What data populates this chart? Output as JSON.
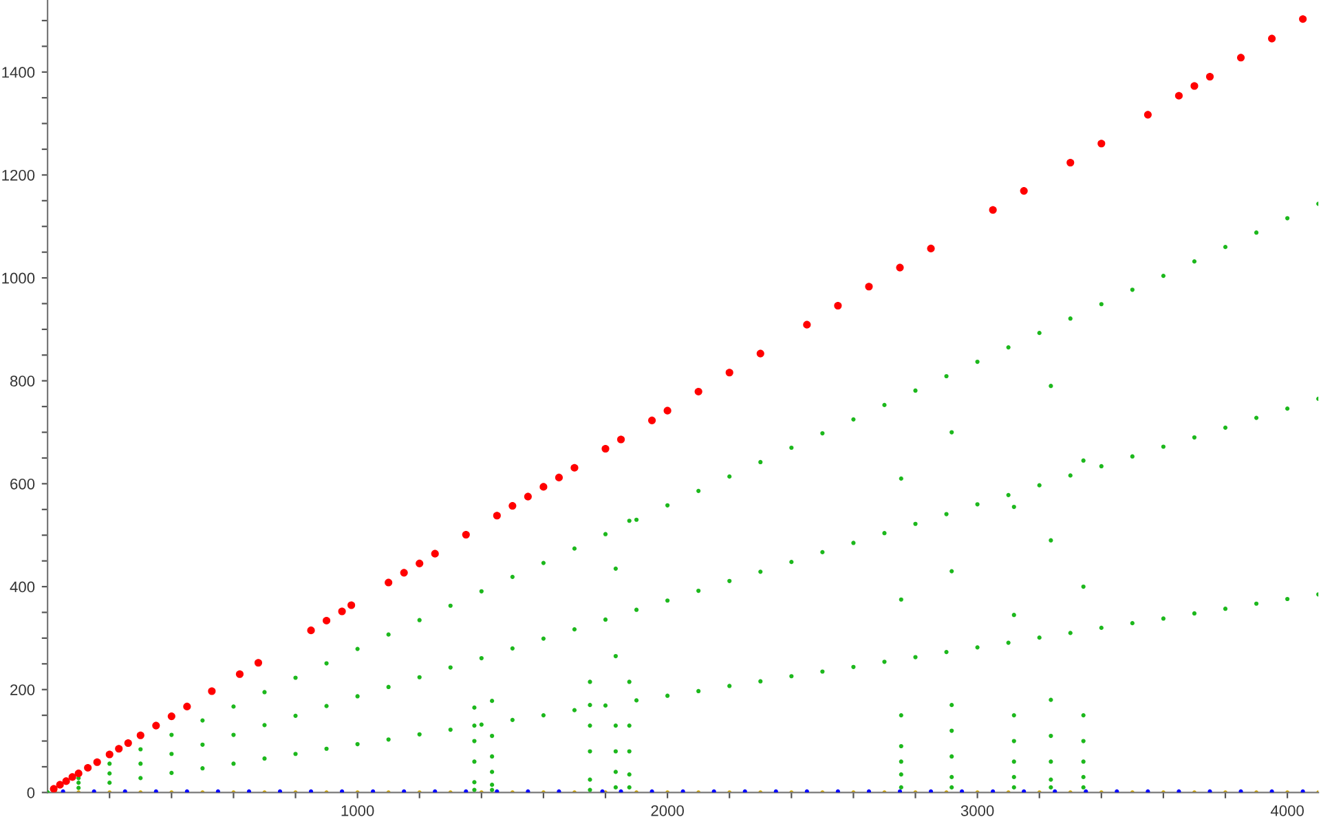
{
  "chart_data": {
    "type": "scatter",
    "marker": "circle",
    "grid": false,
    "xlim": [
      0,
      4100
    ],
    "ylim": [
      0,
      1540
    ],
    "xticks": [
      {
        "value": 200,
        "label": null
      },
      {
        "value": 400,
        "label": null
      },
      {
        "value": 600,
        "label": null
      },
      {
        "value": 800,
        "label": null
      },
      1000,
      {
        "value": 1200,
        "label": null
      },
      {
        "value": 1400,
        "label": null
      },
      {
        "value": 1600,
        "label": null
      },
      {
        "value": 1800,
        "label": null
      },
      2000,
      {
        "value": 2200,
        "label": null
      },
      {
        "value": 2400,
        "label": null
      },
      {
        "value": 2600,
        "label": null
      },
      {
        "value": 2800,
        "label": null
      },
      3000,
      {
        "value": 3200,
        "label": null
      },
      {
        "value": 3400,
        "label": null
      },
      {
        "value": 3600,
        "label": null
      },
      {
        "value": 3800,
        "label": null
      },
      4000
    ],
    "yticks": [
      0,
      {
        "value": 50,
        "label": null
      },
      {
        "value": 100,
        "label": null
      },
      {
        "value": 150,
        "label": null
      },
      200,
      {
        "value": 250,
        "label": null
      },
      {
        "value": 300,
        "label": null
      },
      {
        "value": 350,
        "label": null
      },
      400,
      {
        "value": 450,
        "label": null
      },
      {
        "value": 500,
        "label": null
      },
      {
        "value": 550,
        "label": null
      },
      600,
      {
        "value": 650,
        "label": null
      },
      {
        "value": 700,
        "label": null
      },
      {
        "value": 750,
        "label": null
      },
      800,
      {
        "value": 850,
        "label": null
      },
      {
        "value": 900,
        "label": null
      },
      {
        "value": 950,
        "label": null
      },
      1000,
      {
        "value": 1050,
        "label": null
      },
      {
        "value": 1100,
        "label": null
      },
      {
        "value": 1150,
        "label": null
      },
      1200,
      {
        "value": 1250,
        "label": null
      },
      {
        "value": 1300,
        "label": null
      },
      {
        "value": 1350,
        "label": null
      },
      1400,
      {
        "value": 1450,
        "label": null
      },
      {
        "value": 1500,
        "label": null
      }
    ],
    "series": [
      {
        "color": "#d4a800",
        "x": [
          25,
          100,
          200,
          300,
          400,
          500,
          600,
          700,
          800,
          900,
          1000,
          1100,
          1200,
          1300,
          1400,
          1500,
          1600,
          1700,
          1800,
          1900,
          2000,
          2100,
          2200,
          2300,
          2400,
          2500,
          2600,
          2700,
          2800,
          2900,
          3000,
          3100,
          3200,
          3300,
          3400,
          3500,
          3600,
          3700,
          3800,
          3900,
          4000,
          4100
        ],
        "values": [
          0,
          0,
          0,
          0,
          0,
          0,
          0,
          0,
          0,
          0,
          0,
          0,
          0,
          0,
          0,
          0,
          0,
          0,
          0,
          0,
          0,
          0,
          0,
          0,
          0,
          0,
          0,
          0,
          0,
          0,
          0,
          0,
          0,
          0,
          0,
          0,
          0,
          0,
          0,
          0,
          0,
          0
        ]
      },
      {
        "color": "#0000ff",
        "x": [
          50,
          150,
          250,
          350,
          450,
          550,
          650,
          750,
          850,
          950,
          1050,
          1150,
          1250,
          1350,
          1450,
          1550,
          1650,
          1790,
          1850,
          1950,
          2050,
          2150,
          2250,
          2350,
          2450,
          2550,
          2650,
          2750,
          2850,
          2950,
          3050,
          3150,
          3250,
          3350,
          3450,
          3550,
          3650,
          3750,
          3850,
          3950,
          4050
        ],
        "values": [
          2,
          2,
          2,
          2,
          2,
          2,
          2,
          2,
          2,
          2,
          2,
          2,
          2,
          2,
          2,
          2,
          2,
          2,
          2,
          2,
          2,
          2,
          2,
          2,
          2,
          2,
          2,
          2,
          2,
          2,
          2,
          2,
          2,
          2,
          2,
          2,
          2,
          2,
          2,
          2,
          2
        ]
      },
      {
        "color": "#1db81d",
        "x": [
          0,
          100,
          200,
          300,
          400,
          500,
          600,
          700,
          800,
          900,
          1000,
          1100,
          1200,
          1300,
          1400,
          1500,
          1600,
          1700,
          1800,
          1900,
          2000,
          2100,
          2200,
          2300,
          2400,
          2500,
          2600,
          2700,
          2800,
          2900,
          3000,
          3100,
          3200,
          3300,
          3400,
          3500,
          3600,
          3700,
          3800,
          3900,
          4000,
          4100
        ],
        "values": [
          0,
          9,
          19,
          28,
          38,
          47,
          56,
          66,
          75,
          85,
          94,
          103,
          113,
          122,
          132,
          141,
          150,
          160,
          169,
          179,
          188,
          197,
          207,
          216,
          226,
          235,
          244,
          254,
          263,
          273,
          282,
          291,
          301,
          310,
          320,
          329,
          338,
          348,
          357,
          367,
          376,
          385
        ]
      },
      {
        "color": "#1db81d",
        "x": [
          0,
          100,
          200,
          300,
          400,
          500,
          600,
          700,
          800,
          900,
          1000,
          1100,
          1200,
          1300,
          1400,
          1500,
          1600,
          1700,
          1800,
          1900,
          2000,
          2100,
          2200,
          2300,
          2400,
          2500,
          2600,
          2700,
          2800,
          2900,
          3000,
          3100,
          3200,
          3300,
          3400,
          3500,
          3600,
          3700,
          3800,
          3900,
          4000,
          4100
        ],
        "values": [
          0,
          19,
          37,
          56,
          75,
          93,
          112,
          131,
          149,
          168,
          187,
          205,
          224,
          243,
          261,
          280,
          299,
          317,
          336,
          355,
          373,
          392,
          411,
          429,
          448,
          467,
          485,
          504,
          522,
          541,
          560,
          578,
          597,
          616,
          634,
          653,
          672,
          690,
          709,
          728,
          746,
          765
        ]
      },
      {
        "color": "#1db81d",
        "x": [
          0,
          100,
          200,
          300,
          400,
          500,
          600,
          700,
          800,
          900,
          1000,
          1100,
          1200,
          1300,
          1400,
          1500,
          1600,
          1700,
          1800,
          1900,
          2000,
          2100,
          2200,
          2300,
          2400,
          2500,
          2600,
          2700,
          2800,
          2900,
          3000,
          3100,
          3200,
          3300,
          3400,
          3500,
          3600,
          3700,
          3800,
          3900,
          4000,
          4100
        ],
        "values": [
          0,
          28,
          56,
          84,
          112,
          140,
          167,
          195,
          223,
          251,
          279,
          307,
          335,
          363,
          391,
          419,
          446,
          474,
          502,
          530,
          558,
          586,
          614,
          642,
          670,
          698,
          725,
          753,
          781,
          809,
          837,
          865,
          893,
          921,
          949,
          977,
          1004,
          1032,
          1060,
          1088,
          1116,
          1144
        ]
      },
      {
        "color": "#1db81d",
        "x": [
          1377,
          1377,
          1377,
          1377,
          1377,
          1377,
          1434,
          1434,
          1434,
          1434,
          1434,
          1434,
          1750,
          1750,
          1750,
          1750,
          1750,
          1750,
          1833,
          1833,
          1833,
          1833,
          1833,
          1833,
          1877,
          1877,
          1877,
          1877,
          1877,
          1877,
          2754,
          2754,
          2754,
          2754,
          2754,
          2754,
          2754,
          2917,
          2917,
          2917,
          2917,
          2917,
          2917,
          2917,
          3118,
          3118,
          3118,
          3118,
          3118,
          3118,
          3118,
          3237,
          3237,
          3237,
          3237,
          3237,
          3237,
          3237,
          3342,
          3342,
          3342,
          3342,
          3342,
          3342,
          3342
        ],
        "values": [
          5,
          20,
          60,
          100,
          165,
          130,
          5,
          15,
          40,
          70,
          110,
          178,
          5,
          25,
          80,
          130,
          215,
          170,
          10,
          40,
          80,
          130,
          265,
          435,
          10,
          35,
          80,
          130,
          215,
          528,
          10,
          35,
          60,
          90,
          150,
          375,
          610,
          10,
          30,
          70,
          120,
          170,
          430,
          700,
          10,
          30,
          60,
          100,
          150,
          345,
          555,
          10,
          25,
          60,
          110,
          180,
          490,
          790,
          10,
          30,
          60,
          100,
          150,
          400,
          645
        ]
      },
      {
        "color": "#ff0000",
        "x": [
          20,
          40,
          60,
          80,
          100,
          130,
          160,
          200,
          230,
          260,
          300,
          350,
          400,
          450,
          530,
          620,
          680,
          850,
          900,
          950,
          980,
          1100,
          1150,
          1200,
          1250,
          1350,
          1450,
          1500,
          1550,
          1600,
          1650,
          1700,
          1800,
          1850,
          1950,
          2000,
          2100,
          2200,
          2300,
          2450,
          2550,
          2650,
          2750,
          2850,
          3050,
          3150,
          3300,
          3400,
          3550,
          3650,
          3700,
          3750,
          3850,
          3950,
          4050
        ],
        "values": [
          7,
          15,
          22,
          30,
          37,
          48,
          59,
          74,
          85,
          96,
          111,
          130,
          148,
          167,
          197,
          230,
          252,
          315,
          334,
          352,
          364,
          408,
          427,
          445,
          464,
          501,
          538,
          557,
          575,
          594,
          612,
          631,
          668,
          686,
          723,
          742,
          779,
          816,
          853,
          909,
          946,
          983,
          1020,
          1057,
          1132,
          1169,
          1224,
          1261,
          1317,
          1354,
          1373,
          1391,
          1428,
          1465,
          1503
        ]
      }
    ]
  }
}
